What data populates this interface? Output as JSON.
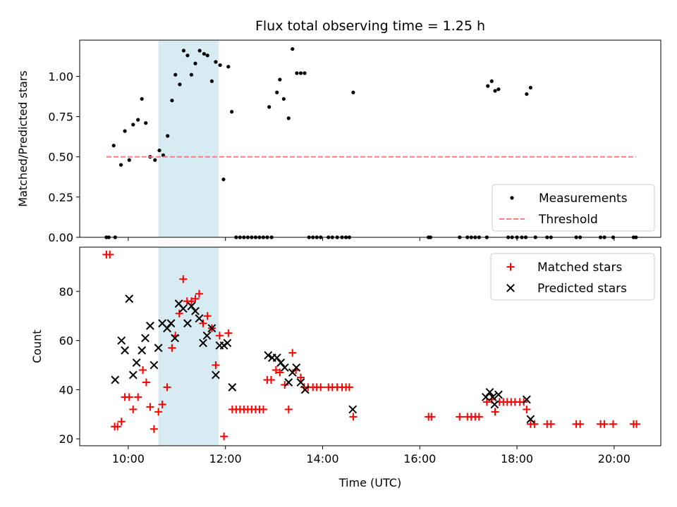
{
  "chart_data": [
    {
      "type": "scatter",
      "title": "Flux total observing time = 1.25 h",
      "xlabel": "",
      "ylabel": "Matched/Predicted stars",
      "xlim": [
        9.0,
        20.96
      ],
      "ylim": [
        0.0,
        1.225
      ],
      "yticks": [
        0.0,
        0.25,
        0.5,
        0.75,
        1.0
      ],
      "ytick_labels": [
        "0.00",
        "0.25",
        "0.50",
        "0.75",
        "1.00"
      ],
      "xticks": [
        10,
        12,
        14,
        16,
        18,
        20
      ],
      "highlight_span": [
        10.62,
        11.86
      ],
      "legend_position": "lower-right",
      "series": [
        {
          "name": "Measurements",
          "marker": "dot",
          "color": "#000000",
          "points": [
            [
              9.55,
              0.0
            ],
            [
              9.6,
              0.0
            ],
            [
              9.73,
              0.0
            ],
            [
              9.7,
              0.57
            ],
            [
              9.85,
              0.45
            ],
            [
              9.93,
              0.66
            ],
            [
              10.02,
              0.48
            ],
            [
              10.1,
              0.7
            ],
            [
              10.2,
              0.73
            ],
            [
              10.28,
              0.86
            ],
            [
              10.36,
              0.71
            ],
            [
              10.45,
              0.5
            ],
            [
              10.55,
              0.48
            ],
            [
              10.64,
              0.54
            ],
            [
              10.72,
              0.51
            ],
            [
              10.81,
              0.63
            ],
            [
              10.9,
              0.85
            ],
            [
              10.97,
              1.01
            ],
            [
              11.06,
              0.95
            ],
            [
              11.14,
              1.16
            ],
            [
              11.22,
              1.13
            ],
            [
              11.3,
              1.01
            ],
            [
              11.38,
              1.08
            ],
            [
              11.47,
              1.16
            ],
            [
              11.56,
              1.14
            ],
            [
              11.63,
              1.13
            ],
            [
              11.72,
              0.97
            ],
            [
              11.8,
              1.09
            ],
            [
              11.89,
              1.07
            ],
            [
              11.96,
              0.36
            ],
            [
              12.06,
              1.06
            ],
            [
              12.13,
              0.78
            ],
            [
              12.22,
              0.0
            ],
            [
              12.3,
              0.0
            ],
            [
              12.38,
              0.0
            ],
            [
              12.46,
              0.0
            ],
            [
              12.54,
              0.0
            ],
            [
              12.62,
              0.0
            ],
            [
              12.7,
              0.0
            ],
            [
              12.78,
              0.0
            ],
            [
              12.86,
              0.0
            ],
            [
              12.95,
              0.0
            ],
            [
              12.9,
              0.81
            ],
            [
              13.06,
              0.9
            ],
            [
              13.12,
              0.98
            ],
            [
              13.2,
              0.86
            ],
            [
              13.3,
              0.74
            ],
            [
              13.38,
              1.17
            ],
            [
              13.47,
              1.02
            ],
            [
              13.55,
              1.02
            ],
            [
              13.63,
              1.02
            ],
            [
              13.72,
              0.0
            ],
            [
              13.8,
              0.0
            ],
            [
              13.88,
              0.0
            ],
            [
              13.96,
              0.0
            ],
            [
              14.12,
              0.0
            ],
            [
              14.2,
              0.0
            ],
            [
              14.3,
              0.0
            ],
            [
              14.4,
              0.0
            ],
            [
              14.48,
              0.0
            ],
            [
              14.55,
              0.0
            ],
            [
              14.63,
              0.9
            ],
            [
              16.18,
              0.0
            ],
            [
              16.22,
              0.0
            ],
            [
              16.82,
              0.0
            ],
            [
              16.98,
              0.0
            ],
            [
              17.06,
              0.0
            ],
            [
              17.14,
              0.0
            ],
            [
              17.22,
              0.0
            ],
            [
              17.38,
              0.0
            ],
            [
              17.4,
              0.94
            ],
            [
              17.48,
              0.97
            ],
            [
              17.55,
              0.91
            ],
            [
              17.62,
              0.92
            ],
            [
              17.82,
              0.0
            ],
            [
              17.9,
              0.0
            ],
            [
              18.0,
              0.0
            ],
            [
              18.1,
              0.0
            ],
            [
              18.18,
              0.0
            ],
            [
              18.2,
              0.89
            ],
            [
              18.28,
              0.93
            ],
            [
              18.38,
              0.0
            ],
            [
              18.62,
              0.0
            ],
            [
              18.7,
              0.0
            ],
            [
              19.22,
              0.0
            ],
            [
              19.3,
              0.0
            ],
            [
              19.72,
              0.0
            ],
            [
              19.8,
              0.0
            ],
            [
              19.98,
              0.0
            ],
            [
              20.4,
              0.0
            ],
            [
              20.45,
              0.0
            ]
          ]
        },
        {
          "name": "Threshold",
          "marker": "dashed-line",
          "color": "#ff7b7b",
          "points": [
            [
              9.55,
              0.5
            ],
            [
              20.45,
              0.5
            ]
          ]
        }
      ]
    },
    {
      "type": "scatter",
      "title": "",
      "xlabel": "Time (UTC)",
      "ylabel": "Count",
      "xlim": [
        9.0,
        20.96
      ],
      "ylim": [
        17.2,
        98.0
      ],
      "yticks": [
        20,
        40,
        60,
        80
      ],
      "ytick_labels": [
        "20",
        "40",
        "60",
        "80"
      ],
      "xticks": [
        10,
        12,
        14,
        16,
        18,
        20
      ],
      "xtick_labels": [
        "10:00",
        "12:00",
        "14:00",
        "16:00",
        "18:00",
        "20:00"
      ],
      "highlight_span": [
        10.62,
        11.86
      ],
      "legend_position": "upper-right",
      "series": [
        {
          "name": "Matched stars",
          "marker": "plus",
          "color": "#ff0000",
          "points": [
            [
              9.55,
              95
            ],
            [
              9.62,
              95
            ],
            [
              9.72,
              25
            ],
            [
              9.78,
              25
            ],
            [
              9.86,
              27
            ],
            [
              9.93,
              37
            ],
            [
              10.02,
              37
            ],
            [
              10.1,
              32
            ],
            [
              10.2,
              37
            ],
            [
              10.3,
              48
            ],
            [
              10.37,
              43
            ],
            [
              10.45,
              33
            ],
            [
              10.53,
              24
            ],
            [
              10.62,
              31
            ],
            [
              10.7,
              34
            ],
            [
              10.8,
              41
            ],
            [
              10.9,
              57
            ],
            [
              10.97,
              62
            ],
            [
              11.05,
              71
            ],
            [
              11.13,
              85
            ],
            [
              11.21,
              76
            ],
            [
              11.3,
              76
            ],
            [
              11.38,
              77
            ],
            [
              11.46,
              79
            ],
            [
              11.54,
              67
            ],
            [
              11.63,
              70
            ],
            [
              11.72,
              65
            ],
            [
              11.8,
              50
            ],
            [
              11.88,
              62
            ],
            [
              11.97,
              21
            ],
            [
              12.06,
              63
            ],
            [
              12.14,
              32
            ],
            [
              12.22,
              32
            ],
            [
              12.3,
              32
            ],
            [
              12.38,
              32
            ],
            [
              12.46,
              32
            ],
            [
              12.54,
              32
            ],
            [
              12.62,
              32
            ],
            [
              12.7,
              32
            ],
            [
              12.78,
              32
            ],
            [
              12.86,
              44
            ],
            [
              12.94,
              44
            ],
            [
              13.04,
              48
            ],
            [
              13.12,
              47
            ],
            [
              13.22,
              42
            ],
            [
              13.3,
              32
            ],
            [
              13.38,
              55
            ],
            [
              13.45,
              48
            ],
            [
              13.55,
              45
            ],
            [
              13.62,
              41
            ],
            [
              13.7,
              41
            ],
            [
              13.8,
              41
            ],
            [
              13.88,
              41
            ],
            [
              13.96,
              41
            ],
            [
              14.12,
              41
            ],
            [
              14.2,
              41
            ],
            [
              14.3,
              41
            ],
            [
              14.4,
              41
            ],
            [
              14.48,
              41
            ],
            [
              14.55,
              41
            ],
            [
              14.63,
              29
            ],
            [
              16.18,
              29
            ],
            [
              16.24,
              29
            ],
            [
              16.82,
              29
            ],
            [
              16.98,
              29
            ],
            [
              17.06,
              29
            ],
            [
              17.14,
              29
            ],
            [
              17.22,
              29
            ],
            [
              17.38,
              35
            ],
            [
              17.48,
              36
            ],
            [
              17.55,
              31
            ],
            [
              17.64,
              35
            ],
            [
              17.72,
              35
            ],
            [
              17.8,
              35
            ],
            [
              17.88,
              35
            ],
            [
              17.96,
              35
            ],
            [
              18.06,
              35
            ],
            [
              18.14,
              35
            ],
            [
              18.2,
              32
            ],
            [
              18.28,
              26
            ],
            [
              18.36,
              26
            ],
            [
              18.62,
              26
            ],
            [
              18.7,
              26
            ],
            [
              19.22,
              26
            ],
            [
              19.3,
              26
            ],
            [
              19.72,
              26
            ],
            [
              19.8,
              26
            ],
            [
              19.98,
              26
            ],
            [
              20.4,
              26
            ],
            [
              20.46,
              26
            ]
          ]
        },
        {
          "name": "Predicted stars",
          "marker": "x",
          "color": "#000000",
          "points": [
            [
              9.73,
              44
            ],
            [
              9.86,
              60
            ],
            [
              9.93,
              56
            ],
            [
              10.02,
              77
            ],
            [
              10.1,
              46
            ],
            [
              10.17,
              51
            ],
            [
              10.28,
              56
            ],
            [
              10.35,
              61
            ],
            [
              10.45,
              66
            ],
            [
              10.53,
              50
            ],
            [
              10.62,
              57
            ],
            [
              10.7,
              67
            ],
            [
              10.8,
              65
            ],
            [
              10.88,
              67
            ],
            [
              10.96,
              61
            ],
            [
              11.04,
              75
            ],
            [
              11.13,
              73
            ],
            [
              11.22,
              67
            ],
            [
              11.3,
              74
            ],
            [
              11.38,
              72
            ],
            [
              11.46,
              69
            ],
            [
              11.54,
              59
            ],
            [
              11.62,
              62
            ],
            [
              11.72,
              65
            ],
            [
              11.8,
              46
            ],
            [
              11.88,
              58
            ],
            [
              11.97,
              58
            ],
            [
              12.04,
              59
            ],
            [
              12.14,
              41
            ],
            [
              12.88,
              54
            ],
            [
              12.96,
              53
            ],
            [
              13.06,
              53
            ],
            [
              13.14,
              51
            ],
            [
              13.22,
              49
            ],
            [
              13.3,
              43
            ],
            [
              13.38,
              47
            ],
            [
              13.46,
              49
            ],
            [
              13.55,
              43
            ],
            [
              13.64,
              40
            ],
            [
              14.62,
              32
            ],
            [
              17.36,
              37
            ],
            [
              17.44,
              39
            ],
            [
              17.5,
              37
            ],
            [
              17.54,
              34
            ],
            [
              17.62,
              38
            ],
            [
              18.2,
              36
            ],
            [
              18.28,
              28
            ]
          ]
        }
      ]
    }
  ]
}
